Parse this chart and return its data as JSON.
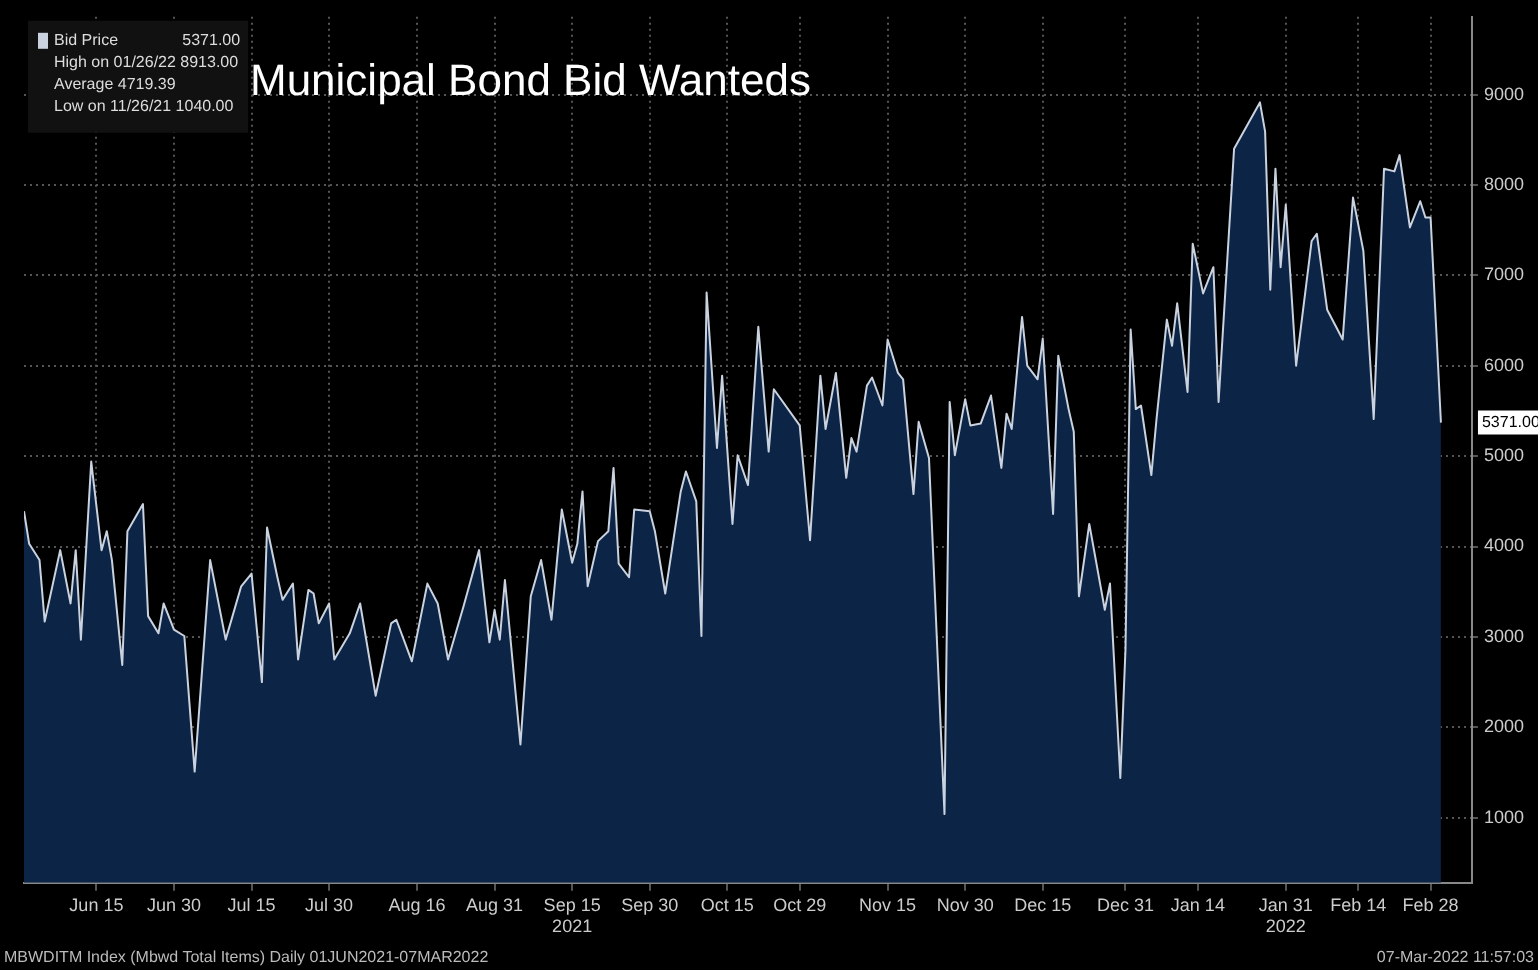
{
  "chart_data": {
    "type": "area",
    "title": "Municipal Bond Bid Wanteds",
    "x": [
      "2021-06-01",
      "2021-06-02",
      "2021-06-04",
      "2021-06-05",
      "2021-06-08",
      "2021-06-10",
      "2021-06-11",
      "2021-06-12",
      "2021-06-14",
      "2021-06-16",
      "2021-06-17",
      "2021-06-18",
      "2021-06-20",
      "2021-06-21",
      "2021-06-24",
      "2021-06-25",
      "2021-06-27",
      "2021-06-28",
      "2021-06-30",
      "2021-07-02",
      "2021-07-04",
      "2021-07-07",
      "2021-07-10",
      "2021-07-13",
      "2021-07-15",
      "2021-07-17",
      "2021-07-18",
      "2021-07-20",
      "2021-07-21",
      "2021-07-23",
      "2021-07-24",
      "2021-07-26",
      "2021-07-27",
      "2021-07-28",
      "2021-07-30",
      "2021-07-31",
      "2021-08-03",
      "2021-08-05",
      "2021-08-08",
      "2021-08-11",
      "2021-08-12",
      "2021-08-15",
      "2021-08-18",
      "2021-08-20",
      "2021-08-22",
      "2021-08-25",
      "2021-08-28",
      "2021-08-30",
      "2021-08-31",
      "2021-09-01",
      "2021-09-02",
      "2021-09-05",
      "2021-09-07",
      "2021-09-09",
      "2021-09-11",
      "2021-09-13",
      "2021-09-15",
      "2021-09-16",
      "2021-09-17",
      "2021-09-18",
      "2021-09-20",
      "2021-09-22",
      "2021-09-23",
      "2021-09-24",
      "2021-09-26",
      "2021-09-27",
      "2021-09-30",
      "2021-10-01",
      "2021-10-03",
      "2021-10-06",
      "2021-10-07",
      "2021-10-09",
      "2021-10-10",
      "2021-10-11",
      "2021-10-13",
      "2021-10-14",
      "2021-10-16",
      "2021-10-17",
      "2021-10-19",
      "2021-10-21",
      "2021-10-23",
      "2021-10-24",
      "2021-10-29",
      "2021-10-31",
      "2021-11-02",
      "2021-11-03",
      "2021-11-05",
      "2021-11-07",
      "2021-11-08",
      "2021-11-09",
      "2021-11-11",
      "2021-11-12",
      "2021-11-14",
      "2021-11-15",
      "2021-11-17",
      "2021-11-18",
      "2021-11-20",
      "2021-11-21",
      "2021-11-23",
      "2021-11-26",
      "2021-11-27",
      "2021-11-28",
      "2021-11-30",
      "2021-12-01",
      "2021-12-03",
      "2021-12-05",
      "2021-12-07",
      "2021-12-08",
      "2021-12-09",
      "2021-12-11",
      "2021-12-12",
      "2021-12-14",
      "2021-12-15",
      "2021-12-17",
      "2021-12-18",
      "2021-12-20",
      "2021-12-21",
      "2021-12-22",
      "2021-12-24",
      "2021-12-27",
      "2021-12-28",
      "2021-12-30",
      "2021-12-31",
      "2022-01-01",
      "2022-01-02",
      "2022-01-03",
      "2022-01-05",
      "2022-01-06",
      "2022-01-08",
      "2022-01-09",
      "2022-01-10",
      "2022-01-12",
      "2022-01-13",
      "2022-01-15",
      "2022-01-17",
      "2022-01-18",
      "2022-01-21",
      "2022-01-26",
      "2022-01-27",
      "2022-01-28",
      "2022-01-29",
      "2022-01-30",
      "2022-01-31",
      "2022-02-02",
      "2022-02-05",
      "2022-02-06",
      "2022-02-08",
      "2022-02-10",
      "2022-02-11",
      "2022-02-13",
      "2022-02-15",
      "2022-02-17",
      "2022-02-19",
      "2022-02-21",
      "2022-02-22",
      "2022-02-24",
      "2022-02-26",
      "2022-02-27",
      "2022-02-28",
      "2022-03-02"
    ],
    "series": [
      {
        "name": "Bid Price",
        "color": "#0c2446",
        "values": [
          4390,
          4030,
          3850,
          3170,
          3960,
          3370,
          3960,
          2970,
          4940,
          3960,
          4170,
          3850,
          2690,
          4170,
          4470,
          3230,
          3040,
          3370,
          3080,
          3010,
          1510,
          3850,
          2970,
          3560,
          3700,
          2500,
          4210,
          3660,
          3410,
          3590,
          2750,
          3520,
          3480,
          3150,
          3370,
          2750,
          3040,
          3370,
          2350,
          3150,
          3190,
          2730,
          3590,
          3370,
          2750,
          3340,
          3960,
          2940,
          3300,
          2970,
          3630,
          1810,
          3450,
          3850,
          3190,
          4410,
          3820,
          4030,
          4610,
          3560,
          4060,
          4170,
          4870,
          3810,
          3660,
          4410,
          4390,
          4170,
          3480,
          4610,
          4830,
          4500,
          3010,
          6810,
          5090,
          5890,
          4250,
          5010,
          4680,
          6430,
          5050,
          5740,
          5340,
          4070,
          5890,
          5300,
          5920,
          4760,
          5200,
          5050,
          5780,
          5870,
          5560,
          6290,
          5920,
          5850,
          4580,
          5380,
          4980,
          1040,
          5600,
          5010,
          5630,
          5340,
          5360,
          5670,
          4870,
          5470,
          5300,
          6540,
          6000,
          5850,
          6300,
          4360,
          6110,
          5520,
          5270,
          3450,
          4250,
          3300,
          3590,
          1440,
          2860,
          6400,
          5520,
          5560,
          4790,
          5410,
          6510,
          6220,
          6690,
          5710,
          7350,
          6800,
          7090,
          5600,
          8400,
          8913,
          8590,
          6840,
          8180,
          7090,
          7780,
          6000,
          7380,
          7460,
          6620,
          6400,
          6290,
          7860,
          7270,
          5410,
          8180,
          8150,
          8330,
          7530,
          7820,
          7640,
          7640,
          5371
        ]
      }
    ],
    "xlim": [
      "2021-06-01",
      "2022-03-08"
    ],
    "xticks": [
      {
        "value": "2021-06-15",
        "label": "Jun 15"
      },
      {
        "value": "2021-06-30",
        "label": "Jun 30"
      },
      {
        "value": "2021-07-15",
        "label": "Jul 15"
      },
      {
        "value": "2021-07-30",
        "label": "Jul 30"
      },
      {
        "value": "2021-08-16",
        "label": "Aug 16"
      },
      {
        "value": "2021-08-31",
        "label": "Aug 31"
      },
      {
        "value": "2021-09-15",
        "label": "Sep 15\n2021"
      },
      {
        "value": "2021-09-30",
        "label": "Sep 30"
      },
      {
        "value": "2021-10-15",
        "label": "Oct 15"
      },
      {
        "value": "2021-10-29",
        "label": "Oct 29"
      },
      {
        "value": "2021-11-15",
        "label": "Nov 15"
      },
      {
        "value": "2021-11-30",
        "label": "Nov 30"
      },
      {
        "value": "2021-12-15",
        "label": "Dec 15"
      },
      {
        "value": "2021-12-31",
        "label": "Dec 31"
      },
      {
        "value": "2022-01-14",
        "label": "Jan 14"
      },
      {
        "value": "2022-01-31",
        "label": "Jan 31\n2022"
      },
      {
        "value": "2022-02-14",
        "label": "Feb 14"
      },
      {
        "value": "2022-02-28",
        "label": "Feb 28"
      }
    ],
    "ylim": [
      280,
      9860
    ],
    "yticks": [
      1000,
      2000,
      3000,
      4000,
      5000,
      6000,
      7000,
      8000,
      9000
    ],
    "grid": true,
    "legend": "top left",
    "annotations": [
      {
        "text": "5371.00",
        "y": 5371
      },
      "High on 01/26/22 8913.00",
      "Average 4719.39",
      "Low on 11/26/21 1040.00",
      "MBWDITM Index (Mbwd Total Items) Daily 01JUN2021-07MAR2022",
      "07-Mar-2022 11:57:03"
    ]
  }
}
